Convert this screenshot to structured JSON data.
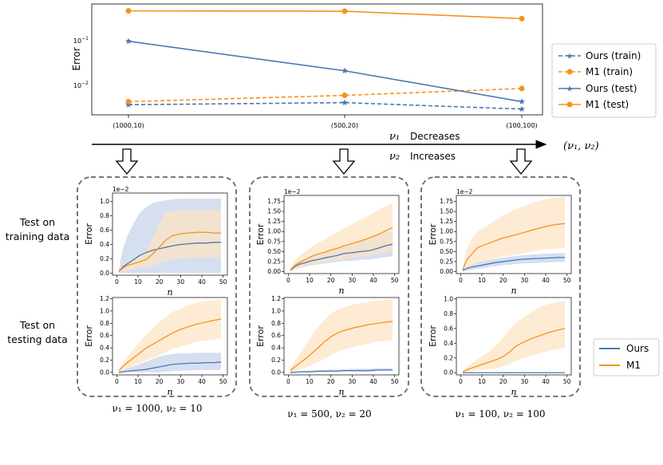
{
  "colors": {
    "ours": "#4a78b4",
    "m1": "#f5921e",
    "ours_fill": "#c4d2ea",
    "m1_fill": "#fde3c0",
    "frame": "#555555"
  },
  "chart_data": [
    {
      "type": "line",
      "id": "top",
      "ylabel": "Error",
      "yscale": "log",
      "ylim": [
        0.0019,
        0.8
      ],
      "categories": [
        "(1000,10)",
        "(500,20)",
        "(100,100)"
      ],
      "ytick_labels": [
        "10^-1",
        "10^-2"
      ],
      "series": [
        {
          "name": "Ours (train)",
          "values": [
            0.0033,
            0.0037,
            0.0026
          ],
          "style": "dashed",
          "marker": "star",
          "color_key": "ours"
        },
        {
          "name": "M1 (train)",
          "values": [
            0.0039,
            0.0055,
            0.008
          ],
          "style": "dashed",
          "marker": "circle",
          "color_key": "m1"
        },
        {
          "name": "Ours (test)",
          "values": [
            0.105,
            0.021,
            0.0039
          ],
          "style": "solid",
          "marker": "star",
          "color_key": "ours"
        },
        {
          "name": "M1 (test)",
          "values": [
            0.55,
            0.54,
            0.36
          ],
          "style": "solid",
          "marker": "circle",
          "color_key": "m1"
        }
      ]
    },
    {
      "type": "area",
      "id": "p11",
      "xlabel": "n",
      "ylabel": "Error",
      "offset_label": "1e−2",
      "xlim": [
        -2,
        52
      ],
      "ylim": [
        -0.03,
        1.12
      ],
      "yticks": [
        0.0,
        0.2,
        0.4,
        0.6,
        0.8,
        1.0
      ],
      "ytick_labels": [
        "0.0",
        "0.2",
        "0.4",
        "0.6",
        "0.8",
        "1.0"
      ],
      "xticks": [
        0,
        10,
        20,
        30,
        40,
        50
      ],
      "xtick_labels": [
        "0",
        "10",
        "20",
        "30",
        "40",
        "50"
      ],
      "x": [
        1,
        3,
        5,
        8,
        11,
        14,
        17,
        20,
        23,
        26,
        30,
        34,
        38,
        42,
        46,
        49
      ],
      "series": [
        {
          "name": "Ours",
          "color_key": "ours",
          "values": [
            0.02,
            0.09,
            0.13,
            0.19,
            0.25,
            0.29,
            0.32,
            0.34,
            0.36,
            0.38,
            0.4,
            0.41,
            0.42,
            0.42,
            0.43,
            0.43
          ],
          "upper": [
            0.05,
            0.35,
            0.52,
            0.7,
            0.85,
            0.93,
            0.98,
            1.0,
            1.02,
            1.03,
            1.04,
            1.04,
            1.04,
            1.04,
            1.04,
            1.04
          ],
          "lower": [
            0.0,
            0.0,
            0.0,
            0.0,
            0.0,
            0.0,
            0.0,
            0.0,
            0.0,
            0.0,
            0.0,
            0.0,
            0.0,
            0.0,
            0.0,
            0.0
          ]
        },
        {
          "name": "M1",
          "color_key": "m1",
          "values": [
            0.02,
            0.07,
            0.11,
            0.13,
            0.16,
            0.19,
            0.27,
            0.36,
            0.46,
            0.52,
            0.55,
            0.56,
            0.57,
            0.57,
            0.56,
            0.56
          ],
          "upper": [
            0.03,
            0.11,
            0.16,
            0.2,
            0.25,
            0.32,
            0.5,
            0.7,
            0.85,
            0.87,
            0.88,
            0.88,
            0.88,
            0.88,
            0.88,
            0.88
          ],
          "lower": [
            0.0,
            0.02,
            0.04,
            0.06,
            0.07,
            0.08,
            0.1,
            0.14,
            0.17,
            0.19,
            0.2,
            0.21,
            0.22,
            0.22,
            0.22,
            0.22
          ]
        }
      ]
    },
    {
      "type": "area",
      "id": "p12",
      "xlabel": "n",
      "ylabel": "Error",
      "offset_label": "1e−2",
      "xlim": [
        -2,
        52
      ],
      "ylim": [
        -0.05,
        1.9
      ],
      "yticks": [
        0.0,
        0.25,
        0.5,
        0.75,
        1.0,
        1.25,
        1.5,
        1.75
      ],
      "ytick_labels": [
        "0.00",
        "0.25",
        "0.50",
        "0.75",
        "1.00",
        "1.25",
        "1.50",
        "1.75"
      ],
      "xticks": [
        0,
        10,
        20,
        30,
        40,
        50
      ],
      "xtick_labels": [
        "0",
        "10",
        "20",
        "30",
        "40",
        "50"
      ],
      "x": [
        1,
        3,
        5,
        8,
        11,
        14,
        17,
        20,
        23,
        26,
        30,
        34,
        38,
        42,
        46,
        49
      ],
      "series": [
        {
          "name": "Ours",
          "color_key": "ours",
          "values": [
            0.03,
            0.12,
            0.18,
            0.22,
            0.27,
            0.3,
            0.34,
            0.37,
            0.4,
            0.45,
            0.47,
            0.5,
            0.52,
            0.58,
            0.65,
            0.68
          ],
          "upper": [
            0.05,
            0.18,
            0.26,
            0.32,
            0.38,
            0.42,
            0.48,
            0.54,
            0.58,
            0.66,
            0.7,
            0.76,
            0.82,
            0.92,
            0.98,
            1.0
          ],
          "lower": [
            0.01,
            0.06,
            0.1,
            0.13,
            0.16,
            0.18,
            0.2,
            0.22,
            0.24,
            0.26,
            0.27,
            0.29,
            0.3,
            0.33,
            0.36,
            0.38
          ]
        },
        {
          "name": "M1",
          "color_key": "m1",
          "values": [
            0.04,
            0.15,
            0.22,
            0.3,
            0.38,
            0.44,
            0.48,
            0.54,
            0.58,
            0.64,
            0.7,
            0.76,
            0.84,
            0.92,
            1.02,
            1.1
          ],
          "upper": [
            0.1,
            0.28,
            0.38,
            0.5,
            0.62,
            0.72,
            0.8,
            0.9,
            0.98,
            1.08,
            1.18,
            1.3,
            1.4,
            1.52,
            1.64,
            1.72
          ],
          "lower": [
            0.0,
            0.04,
            0.08,
            0.12,
            0.16,
            0.2,
            0.22,
            0.25,
            0.28,
            0.31,
            0.34,
            0.37,
            0.4,
            0.44,
            0.48,
            0.52
          ]
        }
      ]
    },
    {
      "type": "area",
      "id": "p13",
      "xlabel": "n",
      "ylabel": "Error",
      "offset_label": "1e−2",
      "xlim": [
        -2,
        52
      ],
      "ylim": [
        -0.05,
        1.9
      ],
      "yticks": [
        0.0,
        0.25,
        0.5,
        0.75,
        1.0,
        1.25,
        1.5,
        1.75
      ],
      "ytick_labels": [
        "0.00",
        "0.25",
        "0.50",
        "0.75",
        "1.00",
        "1.25",
        "1.50",
        "1.75"
      ],
      "xticks": [
        0,
        10,
        20,
        30,
        40,
        50
      ],
      "xtick_labels": [
        "0",
        "10",
        "20",
        "30",
        "40",
        "50"
      ],
      "x": [
        1,
        3,
        5,
        8,
        11,
        14,
        17,
        20,
        23,
        26,
        30,
        34,
        38,
        42,
        46,
        49
      ],
      "series": [
        {
          "name": "Ours",
          "color_key": "ours",
          "values": [
            0.03,
            0.08,
            0.11,
            0.14,
            0.17,
            0.2,
            0.23,
            0.25,
            0.27,
            0.29,
            0.31,
            0.32,
            0.33,
            0.34,
            0.35,
            0.35
          ],
          "upper": [
            0.06,
            0.14,
            0.18,
            0.22,
            0.26,
            0.29,
            0.32,
            0.35,
            0.37,
            0.39,
            0.41,
            0.43,
            0.44,
            0.45,
            0.46,
            0.46
          ],
          "lower": [
            0.0,
            0.03,
            0.05,
            0.07,
            0.09,
            0.12,
            0.14,
            0.16,
            0.17,
            0.19,
            0.2,
            0.21,
            0.22,
            0.23,
            0.24,
            0.24
          ]
        },
        {
          "name": "M1",
          "color_key": "m1",
          "values": [
            0.05,
            0.3,
            0.42,
            0.6,
            0.66,
            0.72,
            0.78,
            0.84,
            0.88,
            0.92,
            0.98,
            1.04,
            1.1,
            1.15,
            1.18,
            1.2
          ],
          "upper": [
            0.12,
            0.6,
            0.8,
            1.0,
            1.1,
            1.2,
            1.3,
            1.4,
            1.48,
            1.56,
            1.64,
            1.72,
            1.78,
            1.82,
            1.85,
            1.87
          ],
          "lower": [
            0.0,
            0.08,
            0.14,
            0.22,
            0.26,
            0.3,
            0.34,
            0.38,
            0.4,
            0.42,
            0.46,
            0.5,
            0.54,
            0.56,
            0.58,
            0.6
          ]
        }
      ]
    },
    {
      "type": "area",
      "id": "p21",
      "xlabel": "n",
      "ylabel": "Error",
      "offset_label": "",
      "xlim": [
        -2,
        52
      ],
      "ylim": [
        -0.04,
        1.22
      ],
      "yticks": [
        0.0,
        0.2,
        0.4,
        0.6,
        0.8,
        1.0,
        1.2
      ],
      "ytick_labels": [
        "0.0",
        "0.2",
        "0.4",
        "0.6",
        "0.8",
        "1.0",
        "1.2"
      ],
      "xticks": [
        0,
        10,
        20,
        30,
        40,
        50
      ],
      "xtick_labels": [
        "0",
        "10",
        "20",
        "30",
        "40",
        "50"
      ],
      "x": [
        1,
        3,
        5,
        8,
        11,
        14,
        17,
        20,
        23,
        26,
        30,
        34,
        38,
        42,
        46,
        49
      ],
      "series": [
        {
          "name": "Ours",
          "color_key": "ours",
          "values": [
            0.0,
            0.01,
            0.02,
            0.03,
            0.04,
            0.05,
            0.07,
            0.09,
            0.11,
            0.13,
            0.14,
            0.15,
            0.15,
            0.16,
            0.16,
            0.17
          ],
          "upper": [
            0.01,
            0.04,
            0.07,
            0.1,
            0.14,
            0.18,
            0.22,
            0.26,
            0.28,
            0.3,
            0.31,
            0.31,
            0.32,
            0.32,
            0.32,
            0.32
          ],
          "lower": [
            0.0,
            0.0,
            0.0,
            0.0,
            0.0,
            0.0,
            0.0,
            0.0,
            0.01,
            0.02,
            0.03,
            0.03,
            0.04,
            0.04,
            0.04,
            0.04
          ]
        },
        {
          "name": "M1",
          "color_key": "m1",
          "values": [
            0.03,
            0.1,
            0.16,
            0.24,
            0.32,
            0.4,
            0.46,
            0.52,
            0.58,
            0.64,
            0.7,
            0.75,
            0.79,
            0.82,
            0.85,
            0.87
          ],
          "upper": [
            0.05,
            0.16,
            0.26,
            0.38,
            0.5,
            0.62,
            0.72,
            0.82,
            0.9,
            0.98,
            1.04,
            1.1,
            1.14,
            1.16,
            1.18,
            1.19
          ],
          "lower": [
            0.01,
            0.04,
            0.07,
            0.11,
            0.16,
            0.2,
            0.24,
            0.28,
            0.33,
            0.38,
            0.42,
            0.46,
            0.5,
            0.52,
            0.54,
            0.55
          ]
        }
      ]
    },
    {
      "type": "area",
      "id": "p22",
      "xlabel": "n",
      "ylabel": "Error",
      "offset_label": "",
      "xlim": [
        -2,
        52
      ],
      "ylim": [
        -0.04,
        1.22
      ],
      "yticks": [
        0.0,
        0.2,
        0.4,
        0.6,
        0.8,
        1.0,
        1.2
      ],
      "ytick_labels": [
        "0.0",
        "0.2",
        "0.4",
        "0.6",
        "0.8",
        "1.0",
        "1.2"
      ],
      "xticks": [
        0,
        10,
        20,
        30,
        40,
        50
      ],
      "xtick_labels": [
        "0",
        "10",
        "20",
        "30",
        "40",
        "50"
      ],
      "x": [
        1,
        3,
        5,
        8,
        11,
        14,
        17,
        20,
        23,
        26,
        30,
        34,
        38,
        42,
        46,
        49
      ],
      "series": [
        {
          "name": "Ours",
          "color_key": "ours",
          "values": [
            0.0,
            0.0,
            0.01,
            0.01,
            0.01,
            0.02,
            0.02,
            0.02,
            0.02,
            0.03,
            0.03,
            0.03,
            0.03,
            0.04,
            0.04,
            0.04
          ],
          "upper": [
            0.01,
            0.01,
            0.02,
            0.03,
            0.03,
            0.04,
            0.04,
            0.05,
            0.05,
            0.05,
            0.06,
            0.06,
            0.06,
            0.07,
            0.07,
            0.07
          ],
          "lower": [
            0.0,
            0.0,
            0.0,
            0.0,
            0.0,
            0.0,
            0.0,
            0.01,
            0.01,
            0.01,
            0.01,
            0.01,
            0.01,
            0.02,
            0.02,
            0.02
          ]
        },
        {
          "name": "M1",
          "color_key": "m1",
          "values": [
            0.03,
            0.09,
            0.14,
            0.22,
            0.31,
            0.4,
            0.5,
            0.58,
            0.64,
            0.68,
            0.72,
            0.75,
            0.78,
            0.8,
            0.82,
            0.83
          ],
          "upper": [
            0.06,
            0.18,
            0.28,
            0.44,
            0.6,
            0.74,
            0.86,
            0.96,
            1.02,
            1.06,
            1.1,
            1.13,
            1.15,
            1.17,
            1.18,
            1.19
          ],
          "lower": [
            0.0,
            0.02,
            0.04,
            0.08,
            0.12,
            0.17,
            0.22,
            0.28,
            0.33,
            0.37,
            0.41,
            0.44,
            0.47,
            0.5,
            0.52,
            0.53
          ]
        }
      ]
    },
    {
      "type": "area",
      "id": "p23",
      "xlabel": "n",
      "ylabel": "Error",
      "offset_label": "",
      "xlim": [
        -2,
        52
      ],
      "ylim": [
        -0.03,
        1.02
      ],
      "yticks": [
        0.0,
        0.2,
        0.4,
        0.6,
        0.8,
        1.0
      ],
      "ytick_labels": [
        "0.0",
        "0.2",
        "0.4",
        "0.6",
        "0.8",
        "1.0"
      ],
      "xticks": [
        0,
        10,
        20,
        30,
        40,
        50
      ],
      "xtick_labels": [
        "0",
        "10",
        "20",
        "30",
        "40",
        "50"
      ],
      "x": [
        1,
        3,
        5,
        8,
        11,
        14,
        17,
        20,
        23,
        26,
        30,
        34,
        38,
        42,
        46,
        49
      ],
      "series": [
        {
          "name": "Ours",
          "color_key": "ours",
          "values": [
            0.0,
            0.0,
            0.0,
            0.0,
            0.0,
            0.0,
            0.0,
            0.0,
            0.0,
            0.0,
            0.0,
            0.0,
            0.0,
            0.0,
            0.0,
            0.0
          ],
          "upper": [
            0.0,
            0.0,
            0.0,
            0.0,
            0.0,
            0.0,
            0.0,
            0.0,
            0.0,
            0.0,
            0.0,
            0.0,
            0.0,
            0.0,
            0.0,
            0.0
          ],
          "lower": [
            0.0,
            0.0,
            0.0,
            0.0,
            0.0,
            0.0,
            0.0,
            0.0,
            0.0,
            0.0,
            0.0,
            0.0,
            0.0,
            0.0,
            0.0,
            0.0
          ]
        },
        {
          "name": "M1",
          "color_key": "m1",
          "values": [
            0.01,
            0.04,
            0.06,
            0.09,
            0.12,
            0.15,
            0.18,
            0.22,
            0.28,
            0.36,
            0.42,
            0.47,
            0.51,
            0.55,
            0.58,
            0.6
          ],
          "upper": [
            0.02,
            0.08,
            0.12,
            0.18,
            0.24,
            0.3,
            0.38,
            0.48,
            0.58,
            0.68,
            0.76,
            0.84,
            0.9,
            0.94,
            0.96,
            0.97
          ],
          "lower": [
            0.0,
            0.01,
            0.02,
            0.03,
            0.04,
            0.05,
            0.06,
            0.08,
            0.12,
            0.16,
            0.2,
            0.24,
            0.27,
            0.3,
            0.32,
            0.34
          ]
        }
      ]
    }
  ],
  "top_legend": [
    "Ours (train)",
    "M1 (train)",
    "Ours (test)",
    "M1 (test)"
  ],
  "bottom_legend": [
    "Ours",
    "M1"
  ],
  "axis_arrow": {
    "nu1_label": "ν₁",
    "nu1_text": "Decreases",
    "nu2_label": "ν₂",
    "nu2_text": "Increases",
    "end_label": "(ν₁, ν₂)"
  },
  "row_labels": {
    "train_line1": "Test on",
    "train_line2": "training data",
    "test_line1": "Test on",
    "test_line2": "testing data"
  },
  "captions": [
    "ν₁ = 1000, ν₂ = 10",
    "ν₁ = 500, ν₂ = 20",
    "ν₁ = 100, ν₂ = 100"
  ]
}
